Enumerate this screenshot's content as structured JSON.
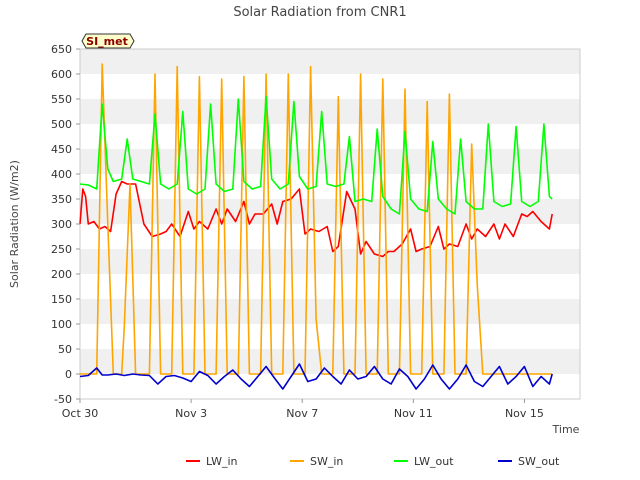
{
  "chart_data": {
    "type": "line",
    "title": "Solar Radiation from CNR1",
    "xlabel": "Time",
    "ylabel": "Solar Radiation (W/m2)",
    "site_label": "SI_met",
    "ylim": [
      -50,
      650
    ],
    "yticks": [
      -50,
      0,
      50,
      100,
      150,
      200,
      250,
      300,
      350,
      400,
      450,
      500,
      550,
      600,
      650
    ],
    "ytick_labels": [
      "-50",
      "0",
      "50",
      "100",
      "150",
      "200",
      "250",
      "300",
      "350",
      "400",
      "450",
      "500",
      "550",
      "600",
      "650"
    ],
    "xlim": [
      0,
      18
    ],
    "xticks": [
      0,
      4,
      8,
      12,
      16
    ],
    "xtick_labels": [
      "Oct 30",
      "Nov 3",
      "Nov 7",
      "Nov 11",
      "Nov 15"
    ],
    "x_unit": "days since Oct 30",
    "grid": "horizontal bands",
    "legend_position": "bottom",
    "series": [
      {
        "name": "LW_in",
        "color": "#ff0000",
        "x": [
          0.0,
          0.1,
          0.2,
          0.3,
          0.5,
          0.7,
          0.9,
          1.1,
          1.3,
          1.5,
          1.7,
          2.0,
          2.3,
          2.6,
          2.9,
          3.1,
          3.3,
          3.6,
          3.9,
          4.1,
          4.3,
          4.6,
          4.9,
          5.1,
          5.3,
          5.6,
          5.9,
          6.1,
          6.3,
          6.6,
          6.9,
          7.1,
          7.3,
          7.6,
          7.9,
          8.1,
          8.3,
          8.6,
          8.9,
          9.1,
          9.3,
          9.6,
          9.9,
          10.1,
          10.3,
          10.6,
          10.9,
          11.1,
          11.3,
          11.6,
          11.9,
          12.1,
          12.3,
          12.6,
          12.9,
          13.1,
          13.3,
          13.6,
          13.9,
          14.1,
          14.3,
          14.6,
          14.9,
          15.1,
          15.3,
          15.6,
          15.9,
          16.1,
          16.3,
          16.6,
          16.9,
          17.0
        ],
        "y": [
          300,
          370,
          355,
          300,
          305,
          290,
          295,
          285,
          360,
          385,
          380,
          380,
          300,
          275,
          280,
          285,
          300,
          275,
          325,
          290,
          305,
          290,
          330,
          300,
          330,
          305,
          345,
          300,
          320,
          320,
          340,
          300,
          345,
          350,
          370,
          280,
          290,
          285,
          295,
          245,
          255,
          365,
          330,
          240,
          265,
          240,
          235,
          245,
          245,
          260,
          290,
          245,
          250,
          255,
          295,
          250,
          260,
          255,
          300,
          270,
          290,
          275,
          300,
          270,
          300,
          275,
          320,
          315,
          325,
          305,
          290,
          320
        ]
      },
      {
        "name": "SW_in",
        "color": "#ffa500",
        "x": [
          0.0,
          0.3,
          0.6,
          0.8,
          1.0,
          1.2,
          1.5,
          1.6,
          1.8,
          2.0,
          2.2,
          2.5,
          2.7,
          2.9,
          3.1,
          3.3,
          3.5,
          3.7,
          3.9,
          4.1,
          4.3,
          4.5,
          4.7,
          4.9,
          5.1,
          5.3,
          5.5,
          5.7,
          5.9,
          6.1,
          6.3,
          6.5,
          6.7,
          6.9,
          7.1,
          7.3,
          7.5,
          7.7,
          7.9,
          8.1,
          8.3,
          8.5,
          8.7,
          8.9,
          9.1,
          9.3,
          9.5,
          9.7,
          9.9,
          10.1,
          10.3,
          10.5,
          10.7,
          10.9,
          11.1,
          11.3,
          11.5,
          11.7,
          11.9,
          12.1,
          12.3,
          12.5,
          12.7,
          12.9,
          13.1,
          13.3,
          13.5,
          13.7,
          13.9,
          14.1,
          14.3,
          14.5,
          14.7,
          14.9,
          15.1,
          15.3,
          15.5,
          15.7,
          15.9,
          16.1,
          16.3,
          16.5,
          16.7,
          16.9,
          17.0
        ],
        "y": [
          0,
          0,
          0,
          620,
          300,
          0,
          0,
          100,
          380,
          0,
          0,
          0,
          600,
          0,
          0,
          0,
          615,
          0,
          0,
          0,
          595,
          0,
          0,
          0,
          590,
          0,
          0,
          0,
          595,
          0,
          0,
          0,
          600,
          0,
          0,
          0,
          600,
          0,
          0,
          0,
          615,
          110,
          0,
          0,
          0,
          555,
          0,
          0,
          0,
          600,
          0,
          0,
          0,
          590,
          0,
          0,
          0,
          570,
          0,
          0,
          0,
          545,
          0,
          0,
          0,
          560,
          0,
          0,
          0,
          460,
          180,
          0,
          0,
          0,
          0,
          0,
          0,
          0,
          0,
          0,
          0,
          0,
          0,
          0,
          0
        ]
      },
      {
        "name": "LW_out",
        "color": "#00ff00",
        "x": [
          0.0,
          0.3,
          0.6,
          0.8,
          1.0,
          1.2,
          1.5,
          1.7,
          1.9,
          2.2,
          2.5,
          2.7,
          2.9,
          3.2,
          3.5,
          3.7,
          3.9,
          4.2,
          4.5,
          4.7,
          4.9,
          5.2,
          5.5,
          5.7,
          5.9,
          6.2,
          6.5,
          6.7,
          6.9,
          7.2,
          7.5,
          7.7,
          7.9,
          8.2,
          8.5,
          8.7,
          8.9,
          9.2,
          9.5,
          9.7,
          9.9,
          10.2,
          10.5,
          10.7,
          10.9,
          11.2,
          11.5,
          11.7,
          11.9,
          12.2,
          12.5,
          12.7,
          12.9,
          13.2,
          13.5,
          13.7,
          13.9,
          14.2,
          14.5,
          14.7,
          14.9,
          15.2,
          15.5,
          15.7,
          15.9,
          16.2,
          16.5,
          16.7,
          16.9,
          17.0
        ],
        "y": [
          380,
          378,
          370,
          540,
          410,
          385,
          390,
          470,
          390,
          385,
          380,
          520,
          380,
          370,
          380,
          525,
          370,
          360,
          370,
          540,
          380,
          365,
          370,
          550,
          385,
          370,
          375,
          555,
          390,
          370,
          380,
          545,
          395,
          370,
          375,
          525,
          380,
          375,
          380,
          475,
          345,
          350,
          345,
          490,
          355,
          330,
          320,
          485,
          350,
          330,
          325,
          465,
          350,
          330,
          320,
          470,
          345,
          330,
          330,
          500,
          345,
          335,
          340,
          495,
          345,
          335,
          345,
          500,
          355,
          350
        ]
      },
      {
        "name": "SW_out",
        "color": "#0000cd",
        "x": [
          0.0,
          0.3,
          0.6,
          0.8,
          1.0,
          1.3,
          1.6,
          1.9,
          2.2,
          2.5,
          2.8,
          3.1,
          3.4,
          3.7,
          4.0,
          4.3,
          4.6,
          4.9,
          5.2,
          5.5,
          5.8,
          6.1,
          6.4,
          6.7,
          7.0,
          7.3,
          7.6,
          7.9,
          8.2,
          8.5,
          8.8,
          9.1,
          9.4,
          9.7,
          10.0,
          10.3,
          10.6,
          10.9,
          11.2,
          11.5,
          11.8,
          12.1,
          12.4,
          12.7,
          13.0,
          13.3,
          13.6,
          13.9,
          14.2,
          14.5,
          14.8,
          15.1,
          15.4,
          15.7,
          16.0,
          16.3,
          16.6,
          16.9,
          17.0
        ],
        "y": [
          -5,
          -3,
          12,
          -2,
          -2,
          0,
          -3,
          0,
          -2,
          -3,
          -20,
          -5,
          -3,
          -8,
          -15,
          5,
          -3,
          -20,
          -5,
          8,
          -10,
          -25,
          -5,
          15,
          -8,
          -30,
          -5,
          20,
          -15,
          -10,
          12,
          -5,
          -20,
          8,
          -10,
          -5,
          15,
          -10,
          -20,
          10,
          -5,
          -30,
          -10,
          18,
          -10,
          -30,
          -10,
          18,
          -15,
          -25,
          -5,
          15,
          -20,
          -5,
          15,
          -25,
          -5,
          -20,
          0
        ]
      }
    ]
  }
}
